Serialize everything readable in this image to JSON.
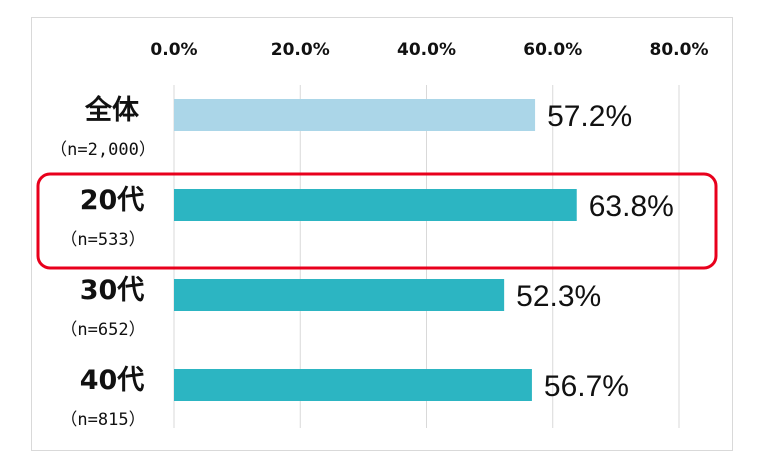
{
  "chart_data": {
    "type": "bar",
    "orientation": "horizontal",
    "xlim": [
      0,
      80
    ],
    "tick_labels": [
      "0.0%",
      "20.0%",
      "40.0%",
      "60.0%",
      "80.0%"
    ],
    "tick_values": [
      0,
      20,
      40,
      60,
      80
    ],
    "categories": [
      {
        "label": "全体",
        "sublabel": "（n=2,000）",
        "value": 57.2,
        "value_label": "57.2%",
        "color": "#abd6e8"
      },
      {
        "label": "20代",
        "sublabel": "（n=533）",
        "value": 63.8,
        "value_label": "63.8%",
        "color": "#2cb5c2",
        "highlighted": true
      },
      {
        "label": "30代",
        "sublabel": "（n=652）",
        "value": 52.3,
        "value_label": "52.3%",
        "color": "#2cb5c2"
      },
      {
        "label": "40代",
        "sublabel": "（n=815）",
        "value": 56.7,
        "value_label": "56.7%",
        "color": "#2cb5c2"
      }
    ],
    "grid": true,
    "highlight_color": "#e8001c"
  }
}
